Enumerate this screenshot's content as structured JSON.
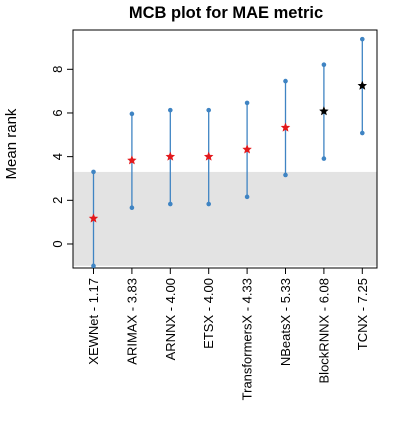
{
  "chart_data": {
    "type": "scatter",
    "title": "MCB plot for MAE metric",
    "xlabel": "",
    "ylabel": "Mean rank",
    "ylim": [
      -1.1,
      9.8
    ],
    "yticks": [
      0,
      2,
      4,
      6,
      8
    ],
    "grid": false,
    "legend": "none",
    "shaded_band": {
      "from": -1.0,
      "to": 3.3,
      "color": "#e3e3e3"
    },
    "categories": [
      "XEWNet - 1.17",
      "ARIMAX - 3.83",
      "ARNNX - 4.00",
      "ETSX - 4.00",
      "TransformersX - 4.33",
      "NBeatsX - 5.33",
      "BlockRNNX - 6.08",
      "TCNX - 7.25"
    ],
    "series": [
      {
        "mean_rank": [
          1.17,
          3.83,
          4.0,
          4.0,
          4.33,
          5.33,
          6.08,
          7.25
        ],
        "lower": [
          -1.0,
          1.66,
          1.83,
          1.83,
          2.16,
          3.16,
          3.91,
          5.08
        ],
        "upper": [
          3.3,
          5.96,
          6.13,
          6.13,
          6.46,
          7.46,
          8.21,
          9.38
        ],
        "point_colors": [
          "#e3191c",
          "#e3191c",
          "#e3191c",
          "#e3191c",
          "#e3191c",
          "#e3191c",
          "#000000",
          "#000000"
        ]
      }
    ],
    "colors": {
      "interval": "#3f84c3",
      "endpoint": "#3f84c3",
      "band": "#e3e3e3",
      "axis": "#000000"
    }
  }
}
